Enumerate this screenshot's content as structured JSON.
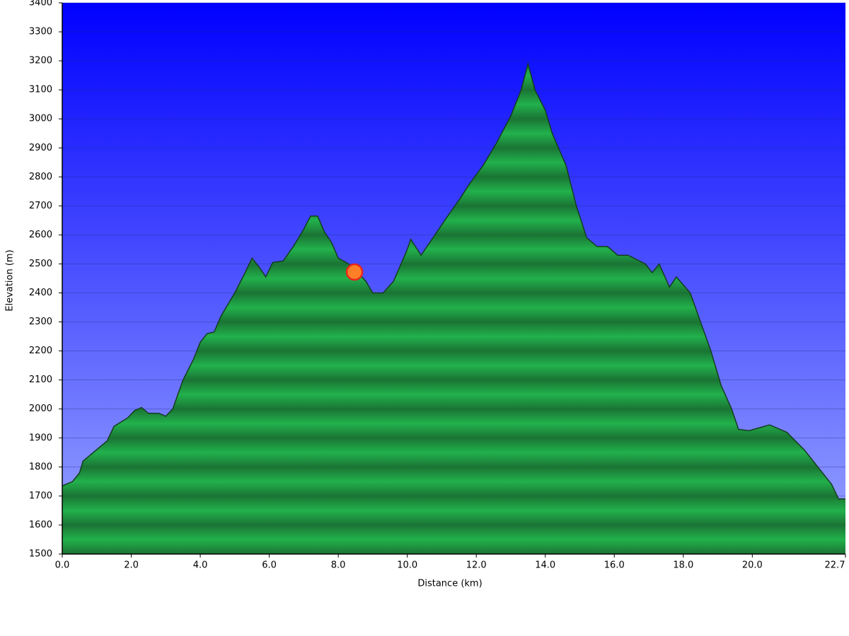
{
  "chart_data": {
    "type": "area",
    "xlabel": "Distance  (km)",
    "ylabel": "Elevation (m)",
    "color": "#22b14c",
    "x": [
      0.0,
      0.3,
      0.5,
      0.6,
      0.8,
      1.0,
      1.3,
      1.5,
      1.7,
      1.9,
      2.1,
      2.3,
      2.5,
      2.8,
      3.0,
      3.2,
      3.5,
      3.8,
      4.0,
      4.2,
      4.4,
      4.6,
      5.0,
      5.3,
      5.5,
      5.7,
      5.9,
      6.1,
      6.4,
      6.7,
      7.0,
      7.2,
      7.4,
      7.6,
      7.8,
      8.0,
      8.3,
      8.5,
      8.8,
      9.0,
      9.3,
      9.6,
      10.0,
      10.1,
      10.4,
      10.8,
      11.2,
      11.5,
      11.8,
      12.2,
      12.6,
      13.0,
      13.3,
      13.5,
      13.7,
      14.0,
      14.2,
      14.6,
      14.9,
      15.2,
      15.5,
      15.8,
      16.1,
      16.4,
      16.9,
      17.1,
      17.3,
      17.6,
      17.8,
      18.2,
      18.5,
      18.8,
      19.1,
      19.4,
      19.6,
      19.9,
      20.2,
      20.5,
      21.0,
      21.5,
      21.9,
      22.3,
      22.5,
      22.7
    ],
    "values": [
      1735,
      1750,
      1780,
      1820,
      1840,
      1860,
      1890,
      1940,
      1955,
      1970,
      1995,
      2005,
      1985,
      1985,
      1975,
      2000,
      2100,
      2170,
      2230,
      2260,
      2265,
      2320,
      2400,
      2470,
      2520,
      2490,
      2455,
      2505,
      2510,
      2560,
      2620,
      2665,
      2665,
      2610,
      2575,
      2520,
      2500,
      2480,
      2440,
      2400,
      2400,
      2440,
      2550,
      2585,
      2530,
      2600,
      2670,
      2720,
      2775,
      2840,
      2920,
      3010,
      3100,
      3190,
      3100,
      3030,
      2950,
      2840,
      2700,
      2590,
      2560,
      2560,
      2530,
      2530,
      2500,
      2470,
      2500,
      2420,
      2455,
      2400,
      2300,
      2200,
      2080,
      2000,
      1930,
      1925,
      1935,
      1945,
      1920,
      1860,
      1800,
      1740,
      1690,
      1690
    ],
    "marker": {
      "x": 8.47,
      "y": 2472,
      "color": "#ff7f27"
    },
    "xlim": [
      0,
      22.7
    ],
    "ylim": [
      1500,
      3400
    ],
    "xticks": [
      {
        "value": 0,
        "label": "0.0"
      },
      {
        "value": 2,
        "label": "2.0"
      },
      {
        "value": 4,
        "label": "4.0"
      },
      {
        "value": 6,
        "label": "6.0"
      },
      {
        "value": 8,
        "label": "8.0"
      },
      {
        "value": 10,
        "label": "10.0"
      },
      {
        "value": 12,
        "label": "12.0"
      },
      {
        "value": 14,
        "label": "14.0"
      },
      {
        "value": 16,
        "label": "16.0"
      },
      {
        "value": 18,
        "label": "18.0"
      },
      {
        "value": 20,
        "label": "20.0"
      },
      22.7
    ],
    "yticks": [
      1500,
      1600,
      1700,
      1800,
      1900,
      2000,
      2100,
      2200,
      2300,
      2400,
      2500,
      2600,
      2700,
      2800,
      2900,
      3000,
      3100,
      3200,
      3300,
      3400
    ],
    "grid": true
  }
}
